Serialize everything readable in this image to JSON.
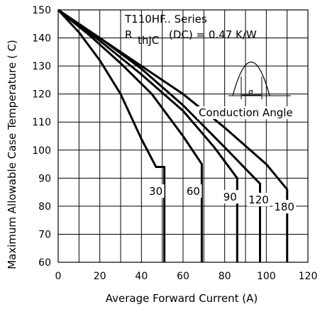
{
  "chart_data": {
    "type": "line",
    "title": "",
    "xlabel": "Average Forward Current (A)",
    "ylabel": "Maximum Allowable Case Temperature ( C)",
    "xlim": [
      0,
      120
    ],
    "ylim": [
      60,
      150
    ],
    "x_ticks": [
      "0",
      "20",
      "40",
      "60",
      "80",
      "100",
      "120"
    ],
    "y_ticks": [
      "60",
      "70",
      "80",
      "90",
      "100",
      "110",
      "120",
      "130",
      "140",
      "150"
    ],
    "grid": true,
    "legend": "none",
    "annotations": {
      "series_name": "T110HF.. Series",
      "r_main": "R",
      "r_sub": "thJC",
      "r_value": "(DC) = 0.47 K/W",
      "conduction_angle_label": "Conduction Angle",
      "phi_symbol": "ø"
    },
    "series": [
      {
        "label": "30",
        "x": [
          0,
          10,
          20,
          30,
          40,
          47,
          51,
          51
        ],
        "y": [
          150,
          142,
          132,
          120,
          104,
          94,
          94,
          60
        ]
      },
      {
        "label": "60",
        "x": [
          0,
          15,
          30,
          45,
          60,
          69,
          69
        ],
        "y": [
          150,
          141,
          131,
          120,
          105,
          95,
          60
        ]
      },
      {
        "label": "90",
        "x": [
          0,
          20,
          40,
          60,
          75,
          86,
          86
        ],
        "y": [
          150,
          139,
          127,
          114,
          101,
          90,
          60
        ]
      },
      {
        "label": "120",
        "x": [
          0,
          20,
          40,
          60,
          80,
          97,
          97
        ],
        "y": [
          150,
          140,
          129,
          116,
          101,
          88,
          60
        ]
      },
      {
        "label": "180",
        "x": [
          0,
          20,
          40,
          60,
          80,
          100,
          110,
          110
        ],
        "y": [
          150,
          140,
          130,
          120,
          108,
          95,
          86,
          60
        ]
      }
    ]
  }
}
